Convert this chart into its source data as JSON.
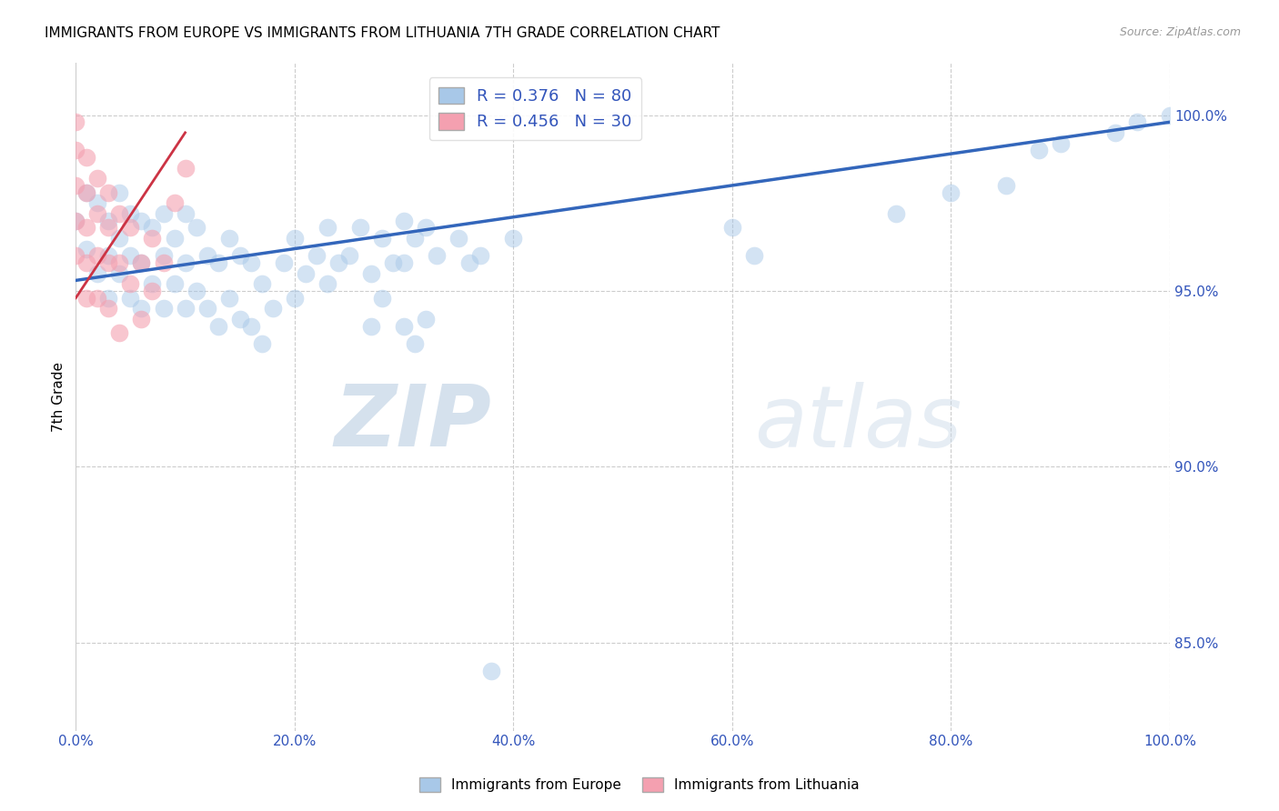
{
  "title": "IMMIGRANTS FROM EUROPE VS IMMIGRANTS FROM LITHUANIA 7TH GRADE CORRELATION CHART",
  "source": "Source: ZipAtlas.com",
  "ylabel": "7th Grade",
  "x_ticks": [
    "0.0%",
    "20.0%",
    "40.0%",
    "60.0%",
    "80.0%",
    "100.0%"
  ],
  "x_tick_vals": [
    0.0,
    0.2,
    0.4,
    0.6,
    0.8,
    1.0
  ],
  "y_ticks_right": [
    "100.0%",
    "95.0%",
    "90.0%",
    "85.0%"
  ],
  "y_tick_vals_right": [
    1.0,
    0.95,
    0.9,
    0.85
  ],
  "xlim": [
    0.0,
    1.0
  ],
  "ylim": [
    0.825,
    1.015
  ],
  "blue_R": 0.376,
  "blue_N": 80,
  "pink_R": 0.456,
  "pink_N": 30,
  "blue_color": "#A8C8E8",
  "pink_color": "#F4A0B0",
  "blue_line_color": "#3366BB",
  "pink_line_color": "#CC3344",
  "grid_color": "#CCCCCC",
  "background_color": "#FFFFFF",
  "watermark_zip": "ZIP",
  "watermark_atlas": "atlas",
  "legend_blue_label": "Immigrants from Europe",
  "legend_pink_label": "Immigrants from Lithuania",
  "blue_points_x": [
    0.0,
    0.01,
    0.01,
    0.02,
    0.02,
    0.03,
    0.03,
    0.03,
    0.04,
    0.04,
    0.04,
    0.05,
    0.05,
    0.05,
    0.06,
    0.06,
    0.06,
    0.07,
    0.07,
    0.08,
    0.08,
    0.08,
    0.09,
    0.09,
    0.1,
    0.1,
    0.1,
    0.11,
    0.11,
    0.12,
    0.12,
    0.13,
    0.13,
    0.14,
    0.14,
    0.15,
    0.15,
    0.16,
    0.16,
    0.17,
    0.17,
    0.18,
    0.19,
    0.2,
    0.2,
    0.21,
    0.22,
    0.23,
    0.23,
    0.24,
    0.25,
    0.26,
    0.27,
    0.28,
    0.29,
    0.3,
    0.3,
    0.31,
    0.32,
    0.33,
    0.35,
    0.36,
    0.37,
    0.38,
    0.4,
    0.27,
    0.28,
    0.3,
    0.31,
    0.32,
    0.6,
    0.62,
    0.75,
    0.8,
    0.85,
    0.88,
    0.9,
    0.95,
    0.97,
    1.0
  ],
  "blue_points_y": [
    0.97,
    0.978,
    0.962,
    0.975,
    0.955,
    0.97,
    0.96,
    0.948,
    0.978,
    0.965,
    0.955,
    0.972,
    0.96,
    0.948,
    0.97,
    0.958,
    0.945,
    0.968,
    0.952,
    0.972,
    0.96,
    0.945,
    0.965,
    0.952,
    0.972,
    0.958,
    0.945,
    0.968,
    0.95,
    0.96,
    0.945,
    0.958,
    0.94,
    0.965,
    0.948,
    0.96,
    0.942,
    0.958,
    0.94,
    0.952,
    0.935,
    0.945,
    0.958,
    0.965,
    0.948,
    0.955,
    0.96,
    0.968,
    0.952,
    0.958,
    0.96,
    0.968,
    0.955,
    0.965,
    0.958,
    0.97,
    0.958,
    0.965,
    0.968,
    0.96,
    0.965,
    0.958,
    0.96,
    0.842,
    0.965,
    0.94,
    0.948,
    0.94,
    0.935,
    0.942,
    0.968,
    0.96,
    0.972,
    0.978,
    0.98,
    0.99,
    0.992,
    0.995,
    0.998,
    1.0
  ],
  "pink_points_x": [
    0.0,
    0.0,
    0.0,
    0.0,
    0.0,
    0.01,
    0.01,
    0.01,
    0.01,
    0.01,
    0.02,
    0.02,
    0.02,
    0.02,
    0.03,
    0.03,
    0.03,
    0.03,
    0.04,
    0.04,
    0.04,
    0.05,
    0.05,
    0.06,
    0.06,
    0.07,
    0.07,
    0.08,
    0.09,
    0.1
  ],
  "pink_points_y": [
    0.998,
    0.99,
    0.98,
    0.97,
    0.96,
    0.988,
    0.978,
    0.968,
    0.958,
    0.948,
    0.982,
    0.972,
    0.96,
    0.948,
    0.978,
    0.968,
    0.958,
    0.945,
    0.972,
    0.958,
    0.938,
    0.968,
    0.952,
    0.958,
    0.942,
    0.965,
    0.95,
    0.958,
    0.975,
    0.985
  ],
  "blue_line_x": [
    0.0,
    1.0
  ],
  "blue_line_y": [
    0.953,
    0.998
  ],
  "pink_line_x": [
    0.0,
    0.1
  ],
  "pink_line_y": [
    0.948,
    0.995
  ]
}
